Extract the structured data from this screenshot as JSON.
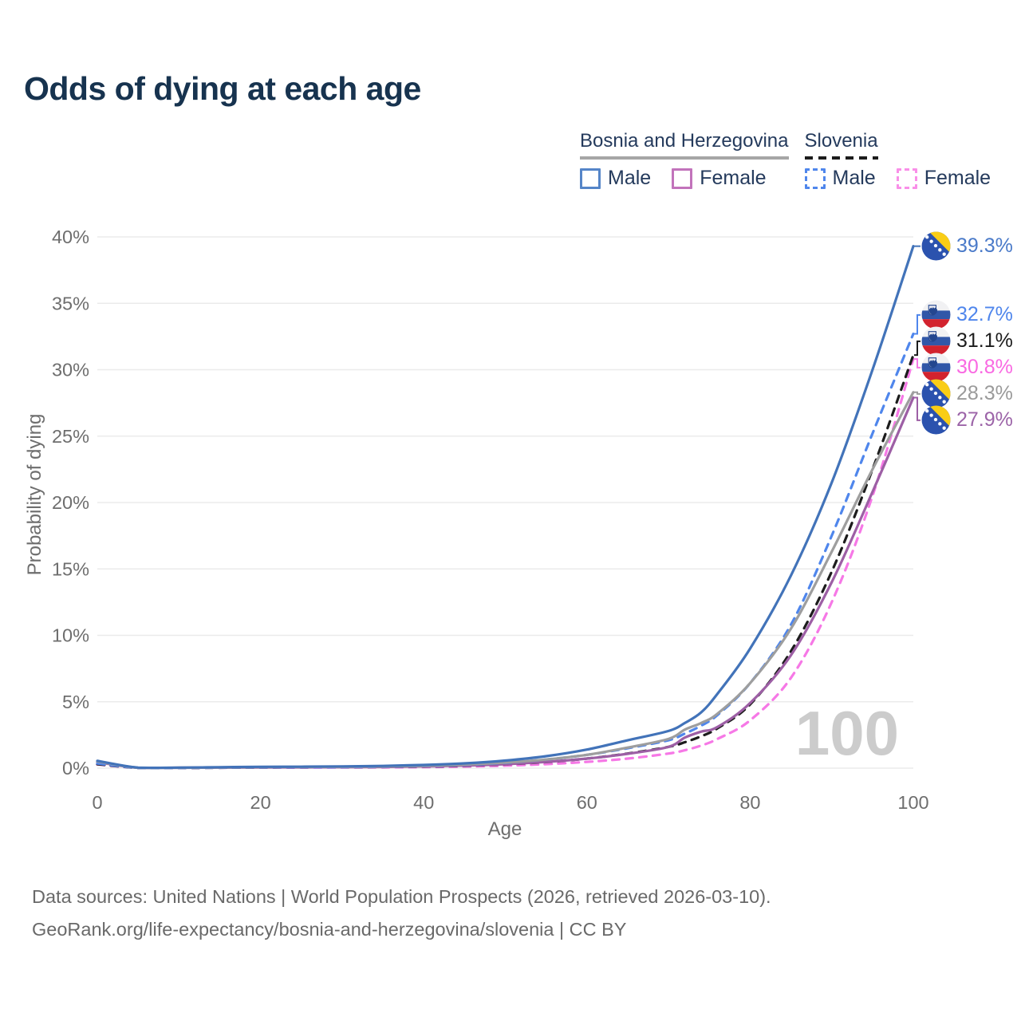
{
  "title": "Odds of dying at each age",
  "watermark": "100",
  "legend": {
    "groups": [
      {
        "country": "Bosnia and Herzegovina",
        "line_style": "solid",
        "underline_color": "#a6a6a6",
        "items": [
          {
            "label": "Male",
            "color": "#4a7ac9",
            "dashed": false
          },
          {
            "label": "Female",
            "color": "#c273bb",
            "dashed": false
          }
        ]
      },
      {
        "country": "Slovenia",
        "line_style": "dashed",
        "underline_color": "#1c1c1c",
        "items": [
          {
            "label": "Male",
            "color": "#4f86ec",
            "dashed": true
          },
          {
            "label": "Female",
            "color": "#f98fe8",
            "dashed": true
          }
        ]
      }
    ]
  },
  "chart_data": {
    "type": "line",
    "title": "Odds of dying at each age",
    "xlabel": "Age",
    "ylabel": "Probability of dying",
    "xlim": [
      0,
      100
    ],
    "ylim": [
      0,
      40
    ],
    "x_ticks": [
      0,
      20,
      40,
      60,
      80,
      100
    ],
    "y_ticks": [
      "0%",
      "5%",
      "10%",
      "15%",
      "20%",
      "25%",
      "30%",
      "35%",
      "40%"
    ],
    "grid": true,
    "legend_position": "top-right",
    "unit": "percent probability of dying at each age",
    "ages": [
      0,
      5,
      10,
      15,
      20,
      25,
      30,
      35,
      40,
      45,
      50,
      55,
      60,
      65,
      70,
      72,
      74,
      76,
      80,
      85,
      90,
      95,
      100
    ],
    "series": [
      {
        "id": "slovenia-female",
        "name": "Slovenia Female",
        "country": "Slovenia",
        "sex": "Female",
        "color": "#f678e6",
        "label_color": "#f969e2",
        "dash": "9 8",
        "flag": "si",
        "end_label": "30.8%",
        "end_value": 30.8,
        "values": [
          0.28,
          0.02,
          0.02,
          0.03,
          0.04,
          0.04,
          0.05,
          0.06,
          0.08,
          0.12,
          0.19,
          0.3,
          0.47,
          0.72,
          1.1,
          1.35,
          1.7,
          2.2,
          3.6,
          6.8,
          12.5,
          20.5,
          30.8
        ]
      },
      {
        "id": "slovenia-total",
        "name": "Slovenia",
        "country": "Slovenia",
        "sex": "Both",
        "color": "#1c1c1c",
        "label_color": "#1c1c1c",
        "dash": "9 8",
        "flag": "si",
        "end_label": "31.1%",
        "end_value": 31.1,
        "values": [
          0.3,
          0.02,
          0.02,
          0.03,
          0.05,
          0.06,
          0.07,
          0.09,
          0.12,
          0.18,
          0.29,
          0.46,
          0.72,
          1.1,
          1.6,
          1.95,
          2.4,
          3.0,
          4.8,
          8.8,
          14.8,
          22.5,
          31.1
        ]
      },
      {
        "id": "bosnia-female",
        "name": "Bosnia and Herzegovina Female",
        "country": "Bosnia and Herzegovina",
        "sex": "Female",
        "color": "#9d5fa5",
        "label_color": "#9c64a8",
        "dash": null,
        "flag": "ba",
        "end_label": "27.9%",
        "end_value": 27.9,
        "values": [
          0.45,
          0.03,
          0.03,
          0.04,
          0.05,
          0.06,
          0.07,
          0.09,
          0.13,
          0.19,
          0.3,
          0.47,
          0.72,
          1.08,
          1.6,
          2.3,
          2.75,
          3.1,
          4.9,
          8.5,
          14.0,
          20.8,
          27.9
        ]
      },
      {
        "id": "slovenia-male",
        "name": "Slovenia Male",
        "country": "Slovenia",
        "sex": "Male",
        "color": "#4f86ec",
        "label_color": "#4f86ec",
        "dash": "9 8",
        "flag": "si",
        "end_label": "32.7%",
        "end_value": 32.7,
        "values": [
          0.35,
          0.02,
          0.02,
          0.04,
          0.06,
          0.07,
          0.08,
          0.11,
          0.16,
          0.25,
          0.4,
          0.65,
          1.0,
          1.5,
          2.1,
          2.6,
          3.2,
          4.0,
          6.4,
          10.8,
          17.5,
          25.2,
          32.7
        ]
      },
      {
        "id": "bosnia-total",
        "name": "Bosnia and Herzegovina",
        "country": "Bosnia and Herzegovina",
        "sex": "Both",
        "color": "#9e9e9e",
        "label_color": "#9a9a9a",
        "dash": null,
        "flag": "ba",
        "end_label": "28.3%",
        "end_value": 28.3,
        "values": [
          0.5,
          0.03,
          0.03,
          0.05,
          0.08,
          0.09,
          0.1,
          0.13,
          0.18,
          0.27,
          0.42,
          0.65,
          1.0,
          1.55,
          2.2,
          2.9,
          3.4,
          4.1,
          6.4,
          10.5,
          16.3,
          22.5,
          28.3
        ]
      },
      {
        "id": "bosnia-male",
        "name": "Bosnia and Herzegovina Male",
        "country": "Bosnia and Herzegovina",
        "sex": "Male",
        "color": "#4273b9",
        "label_color": "#4a7ac9",
        "dash": null,
        "flag": "ba",
        "end_label": "39.3%",
        "end_value": 39.3,
        "values": [
          0.55,
          0.04,
          0.04,
          0.07,
          0.1,
          0.11,
          0.13,
          0.17,
          0.24,
          0.36,
          0.57,
          0.9,
          1.4,
          2.1,
          2.8,
          3.4,
          4.2,
          5.6,
          9.0,
          14.5,
          21.5,
          30.0,
          39.3
        ]
      }
    ]
  },
  "footer": {
    "line1": "Data sources: United Nations | World Population Prospects (2026, retrieved 2026-03-10).",
    "line2": "GeoRank.org/life-expectancy/bosnia-and-herzegovina/slovenia | CC BY"
  }
}
